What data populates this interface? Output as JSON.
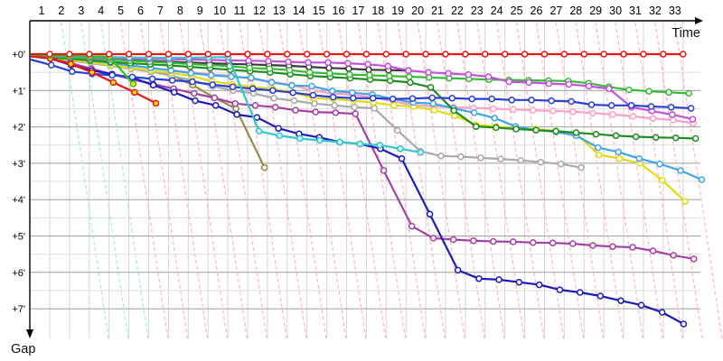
{
  "chart_data": {
    "type": "line",
    "title": "",
    "description_visible_text_only": true,
    "x_axis": {
      "title": "Time",
      "tick_labels": [
        1,
        2,
        3,
        4,
        5,
        6,
        7,
        8,
        9,
        10,
        11,
        12,
        13,
        14,
        15,
        16,
        17,
        18,
        19,
        20,
        21,
        22,
        23,
        24,
        25,
        26,
        27,
        28,
        29,
        30,
        31,
        32,
        33
      ]
    },
    "y_axis": {
      "title": "Gap",
      "tick_labels": [
        "+0'",
        "+1'",
        "+2'",
        "+3'",
        "+4'",
        "+5'",
        "+6'",
        "+7'"
      ],
      "range_minutes": [
        0,
        8
      ]
    },
    "grid": {
      "vertical": "#d6d6d6",
      "minor_horizontal": "#dedede",
      "major_horizontal": "#9e9e9e",
      "axis_color": "#000000"
    },
    "lap_reference_lines": {
      "cyan_laps": [
        2,
        3,
        4
      ],
      "pink_lap_range": [
        5,
        33
      ],
      "cyan_color": "#a5e4ee",
      "pink_color": "#ffb5b5"
    },
    "series": [
      {
        "name": "black",
        "color": "#3a3a3a",
        "marker_fill": "#ffffff",
        "gaps_min": [
          0.04,
          0.08,
          0.11,
          0.14,
          0.17,
          0.19,
          0.21,
          0.23,
          0.25,
          0.27,
          0.28,
          0.3,
          0.32,
          0.35,
          0.38,
          0.4,
          0.43,
          0.44,
          0.45
        ]
      },
      {
        "name": "olive",
        "color": "#8f8f45",
        "marker_fill": "#ffffff",
        "gaps_min": [
          0.08,
          0.16,
          0.24,
          0.32,
          0.4,
          0.48,
          0.58,
          0.85,
          1.2,
          1.5,
          3.12
        ]
      },
      {
        "name": "gray",
        "color": "#a9a9a9",
        "marker_fill": "#ffffff",
        "gaps_min": [
          0.1,
          0.18,
          0.25,
          0.32,
          0.4,
          0.48,
          0.6,
          0.72,
          0.88,
          1.0,
          1.08,
          1.21,
          1.28,
          1.36,
          1.41,
          1.46,
          1.49,
          2.1,
          2.67,
          2.8,
          2.82,
          2.85,
          2.88,
          2.92,
          2.97,
          3.02,
          3.12
        ]
      },
      {
        "name": "pink",
        "color": "#ff9fc4",
        "marker_fill": "#ffffff",
        "gaps_min": [
          0.08,
          0.14,
          0.2,
          0.26,
          0.32,
          0.38,
          0.44,
          0.5,
          0.55,
          0.6,
          0.68,
          0.76,
          0.85,
          1.0,
          1.08,
          1.12,
          1.18,
          1.3,
          1.39,
          1.44,
          1.46,
          1.48,
          1.5,
          1.52,
          1.54,
          1.56,
          1.58,
          1.62,
          1.66,
          1.71,
          1.77,
          1.81,
          1.9
        ]
      },
      {
        "name": "yellow",
        "color": "#e2da12",
        "marker_fill": "#ffffff",
        "gaps_min": [
          0.1,
          0.16,
          0.22,
          0.3,
          0.38,
          0.45,
          0.52,
          0.6,
          0.75,
          0.83,
          0.9,
          0.95,
          1.05,
          1.21,
          1.23,
          1.28,
          1.33,
          1.41,
          1.44,
          1.54,
          1.69,
          1.94,
          1.99,
          2.04,
          2.06,
          2.12,
          2.19,
          2.77,
          2.87,
          3.0,
          3.47,
          4.05
        ]
      },
      {
        "name": "sky-blue",
        "color": "#3fa5ea",
        "marker_fill": "#ffffff",
        "gaps_min": [
          0.07,
          0.12,
          0.18,
          0.24,
          0.31,
          0.38,
          0.45,
          0.52,
          0.58,
          0.62,
          0.65,
          0.78,
          0.86,
          0.88,
          1.01,
          1.06,
          1.11,
          1.23,
          1.33,
          1.36,
          1.49,
          1.61,
          1.76,
          1.99,
          2.09,
          2.14,
          2.24,
          2.57,
          2.69,
          2.87,
          3.02,
          3.2,
          3.45
        ]
      },
      {
        "name": "dark-green",
        "color": "#1e8c1e",
        "marker_fill": "#ffffff",
        "gaps_min": [
          0.09,
          0.13,
          0.17,
          0.21,
          0.25,
          0.28,
          0.31,
          0.35,
          0.39,
          0.43,
          0.47,
          0.5,
          0.55,
          0.6,
          0.63,
          0.66,
          0.7,
          0.73,
          0.78,
          0.91,
          1.55,
          1.99,
          2.02,
          2.06,
          2.09,
          2.12,
          2.16,
          2.2,
          2.24,
          2.27,
          2.29,
          2.3,
          2.32
        ]
      },
      {
        "name": "green",
        "color": "#35bb35",
        "marker_fill": "#ffffff",
        "gaps_min": [
          0.06,
          0.09,
          0.12,
          0.15,
          0.18,
          0.21,
          0.24,
          0.27,
          0.3,
          0.33,
          0.38,
          0.4,
          0.44,
          0.5,
          0.53,
          0.56,
          0.58,
          0.6,
          0.62,
          0.64,
          0.66,
          0.68,
          0.7,
          0.71,
          0.72,
          0.73,
          0.74,
          0.8,
          0.9,
          0.98,
          1.02,
          1.05,
          1.08
        ]
      },
      {
        "name": "violet",
        "color": "#c44fe0",
        "marker_fill": "#ffffff",
        "gaps_min": [
          0.05,
          0.07,
          0.09,
          0.1,
          0.12,
          0.13,
          0.14,
          0.15,
          0.16,
          0.17,
          0.18,
          0.19,
          0.21,
          0.23,
          0.23,
          0.25,
          0.28,
          0.33,
          0.45,
          0.5,
          0.53,
          0.56,
          0.62,
          0.76,
          0.78,
          0.81,
          0.83,
          0.88,
          0.95,
          1.46,
          1.56,
          1.66,
          1.79
        ]
      },
      {
        "name": "purple",
        "color": "#a540a5",
        "marker_fill": "#ffffff",
        "gaps_min": [
          0.12,
          0.25,
          0.4,
          0.55,
          0.7,
          0.82,
          0.95,
          1.08,
          1.2,
          1.36,
          1.41,
          1.46,
          1.54,
          1.59,
          1.61,
          1.64,
          3.2,
          4.73,
          5.06,
          5.1,
          5.13,
          5.15,
          5.16,
          5.18,
          5.19,
          5.21,
          5.26,
          5.29,
          5.31,
          5.41,
          5.53,
          5.63
        ]
      },
      {
        "name": "navy",
        "color": "#1c1cb8",
        "marker_fill": "#ffffff",
        "gaps_min": [
          0.12,
          0.3,
          0.45,
          0.55,
          0.65,
          0.85,
          1.05,
          1.28,
          1.41,
          1.66,
          1.74,
          2.04,
          2.19,
          2.29,
          2.42,
          2.47,
          2.6,
          2.87,
          4.4,
          5.94,
          6.17,
          6.2,
          6.27,
          6.34,
          6.48,
          6.55,
          6.65,
          6.78,
          6.9,
          7.1,
          7.42
        ]
      },
      {
        "name": "royal-blue",
        "color": "#2b3fd6",
        "marker_fill": "#ffffff",
        "gaps_min": [
          0.3,
          0.48,
          0.54,
          0.58,
          0.63,
          0.68,
          0.72,
          0.76,
          0.84,
          0.9,
          0.95,
          1.0,
          1.06,
          1.13,
          1.18,
          1.21,
          1.21,
          1.23,
          1.22,
          1.2,
          1.21,
          1.23,
          1.23,
          1.26,
          1.26,
          1.28,
          1.3,
          1.39,
          1.41,
          1.41,
          1.44,
          1.46,
          1.49
        ]
      },
      {
        "name": "teal",
        "color": "#2fc7cd",
        "marker_fill": "#d8fbff",
        "gaps_min": [
          0.04,
          0.06,
          0.07,
          0.08,
          0.09,
          0.1,
          0.1,
          0.1,
          0.09,
          0.08,
          2.12,
          2.24,
          2.32,
          2.37,
          2.42,
          2.47,
          2.5,
          2.6,
          2.7
        ]
      },
      {
        "name": "red-dnf",
        "color": "#ea1515",
        "marker_fill": "#ffe800",
        "gaps_min": [
          0.12,
          0.27,
          0.5,
          0.78,
          1.05,
          1.35
        ]
      },
      {
        "name": "green-dnf",
        "color": "#2fbf2f",
        "marker_fill": "#ffe800",
        "gaps_min": [
          0.04,
          0.05,
          0.06,
          0.07,
          0.82
        ]
      },
      {
        "name": "leader-red",
        "color": "#ea1515",
        "marker_fill": "#ffffff",
        "gaps_min": [
          0,
          0,
          0,
          0,
          0,
          0,
          0,
          0,
          0,
          0,
          0,
          0,
          0,
          0,
          0,
          0,
          0,
          0,
          0,
          0,
          0,
          0,
          0,
          0,
          0,
          0,
          0,
          0,
          0,
          0,
          0,
          0,
          0
        ]
      }
    ]
  }
}
